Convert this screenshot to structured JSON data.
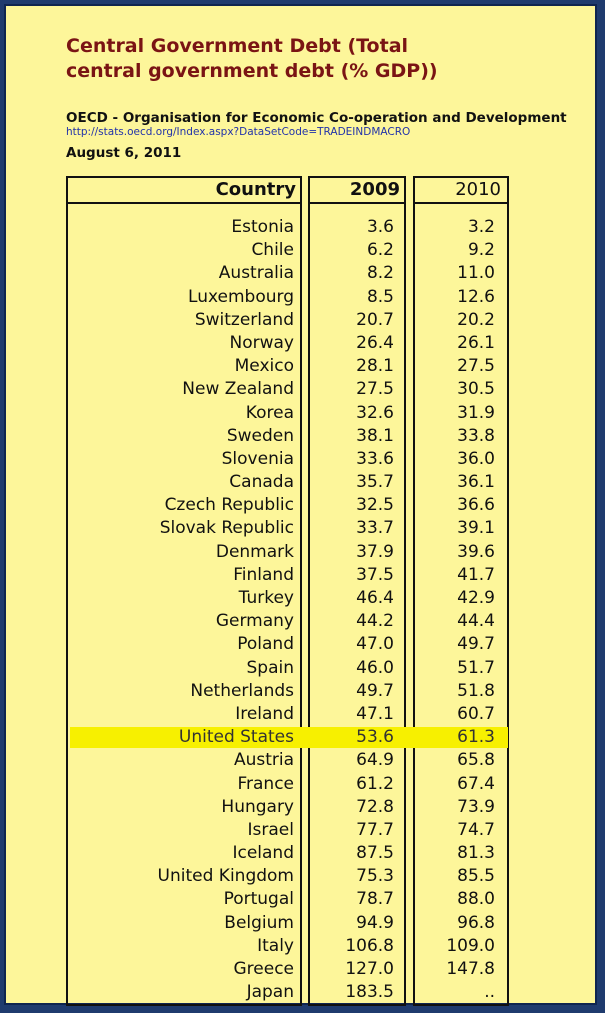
{
  "title": "Central Government Debt (Total central government debt (% GDP))",
  "title_line1": "Central Government Debt (Total",
  "title_line2": "central government debt (% GDP))",
  "source": "OECD - Organisation for Economic Co-operation and Development",
  "url": "http://stats.oecd.org/Index.aspx?DataSetCode=TRADEINDMACRO",
  "date": "August 6, 2011",
  "colors": {
    "background": "#fdf69a",
    "title": "#7a1414",
    "highlight": "#f7f000",
    "border": "#1f3b6e"
  },
  "table": {
    "headers": [
      "Country",
      "2009",
      "2010"
    ],
    "highlighted_country": "United States",
    "rows": [
      [
        "Estonia",
        "3.6",
        "3.2"
      ],
      [
        "Chile",
        "6.2",
        "9.2"
      ],
      [
        "Australia",
        "8.2",
        "11.0"
      ],
      [
        "Luxembourg",
        "8.5",
        "12.6"
      ],
      [
        "Switzerland",
        "20.7",
        "20.2"
      ],
      [
        "Norway",
        "26.4",
        "26.1"
      ],
      [
        "Mexico",
        "28.1",
        "27.5"
      ],
      [
        "New Zealand",
        "27.5",
        "30.5"
      ],
      [
        "Korea",
        "32.6",
        "31.9"
      ],
      [
        "Sweden",
        "38.1",
        "33.8"
      ],
      [
        "Slovenia",
        "33.6",
        "36.0"
      ],
      [
        "Canada",
        "35.7",
        "36.1"
      ],
      [
        "Czech Republic",
        "32.5",
        "36.6"
      ],
      [
        "Slovak Republic",
        "33.7",
        "39.1"
      ],
      [
        "Denmark",
        "37.9",
        "39.6"
      ],
      [
        "Finland",
        "37.5",
        "41.7"
      ],
      [
        "Turkey",
        "46.4",
        "42.9"
      ],
      [
        "Germany",
        "44.2",
        "44.4"
      ],
      [
        "Poland",
        "47.0",
        "49.7"
      ],
      [
        "Spain",
        "46.0",
        "51.7"
      ],
      [
        "Netherlands",
        "49.7",
        "51.8"
      ],
      [
        "Ireland",
        "47.1",
        "60.7"
      ],
      [
        "United States",
        "53.6",
        "61.3"
      ],
      [
        "Austria",
        "64.9",
        "65.8"
      ],
      [
        "France",
        "61.2",
        "67.4"
      ],
      [
        "Hungary",
        "72.8",
        "73.9"
      ],
      [
        "Israel",
        "77.7",
        "74.7"
      ],
      [
        "Iceland",
        "87.5",
        "81.3"
      ],
      [
        "United Kingdom",
        "75.3",
        "85.5"
      ],
      [
        "Portugal",
        "78.7",
        "88.0"
      ],
      [
        "Belgium",
        "94.9",
        "96.8"
      ],
      [
        "Italy",
        "106.8",
        "109.0"
      ],
      [
        "Greece",
        "127.0",
        "147.8"
      ],
      [
        "Japan",
        "183.5",
        ".."
      ]
    ]
  },
  "chart_data": {
    "type": "table",
    "title": "Central Government Debt (Total central government debt (% GDP))",
    "columns": [
      "Country",
      "2009",
      "2010"
    ],
    "categories": [
      "Estonia",
      "Chile",
      "Australia",
      "Luxembourg",
      "Switzerland",
      "Norway",
      "Mexico",
      "New Zealand",
      "Korea",
      "Sweden",
      "Slovenia",
      "Canada",
      "Czech Republic",
      "Slovak Republic",
      "Denmark",
      "Finland",
      "Turkey",
      "Germany",
      "Poland",
      "Spain",
      "Netherlands",
      "Ireland",
      "United States",
      "Austria",
      "France",
      "Hungary",
      "Israel",
      "Iceland",
      "United Kingdom",
      "Portugal",
      "Belgium",
      "Italy",
      "Greece",
      "Japan"
    ],
    "series": [
      {
        "name": "2009",
        "values": [
          3.6,
          6.2,
          8.2,
          8.5,
          20.7,
          26.4,
          28.1,
          27.5,
          32.6,
          38.1,
          33.6,
          35.7,
          32.5,
          33.7,
          37.9,
          37.5,
          46.4,
          44.2,
          47.0,
          46.0,
          49.7,
          47.1,
          53.6,
          64.9,
          61.2,
          72.8,
          77.7,
          87.5,
          75.3,
          78.7,
          94.9,
          106.8,
          127.0,
          183.5
        ]
      },
      {
        "name": "2010",
        "values": [
          3.2,
          9.2,
          11.0,
          12.6,
          20.2,
          26.1,
          27.5,
          30.5,
          31.9,
          33.8,
          36.0,
          36.1,
          36.6,
          39.1,
          39.6,
          41.7,
          42.9,
          44.4,
          49.7,
          51.7,
          51.8,
          60.7,
          61.3,
          65.8,
          67.4,
          73.9,
          74.7,
          81.3,
          85.5,
          88.0,
          96.8,
          109.0,
          147.8,
          null
        ]
      }
    ]
  }
}
